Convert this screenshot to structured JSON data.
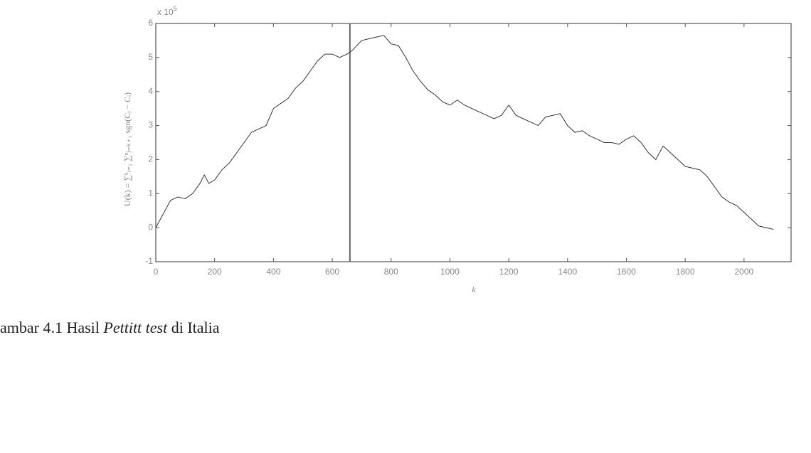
{
  "chart_data": {
    "type": "line",
    "y_multiplier": "x 10",
    "y_multiplier_exponent": "5",
    "xlabel": "k",
    "ylabel": "U(k) = ∑ᵏᵢ₌₁ ∑ⁿⱼ₌ₖ₊₁ sgn(Cⱼ − Cᵢ)",
    "x": [
      0,
      25,
      50,
      75,
      100,
      125,
      150,
      165,
      180,
      200,
      225,
      250,
      275,
      300,
      325,
      350,
      375,
      400,
      425,
      450,
      475,
      500,
      525,
      550,
      575,
      600,
      625,
      650,
      667,
      700,
      725,
      750,
      775,
      800,
      825,
      850,
      875,
      900,
      925,
      950,
      975,
      1000,
      1025,
      1050,
      1075,
      1100,
      1125,
      1150,
      1175,
      1200,
      1225,
      1250,
      1275,
      1300,
      1325,
      1350,
      1375,
      1400,
      1425,
      1450,
      1475,
      1500,
      1525,
      1550,
      1575,
      1600,
      1625,
      1650,
      1675,
      1700,
      1725,
      1750,
      1775,
      1800,
      1825,
      1850,
      1875,
      1900,
      1925,
      1950,
      1975,
      2000,
      2025,
      2050,
      2075,
      2100
    ],
    "values": [
      0,
      0.4,
      0.8,
      0.9,
      0.85,
      1.0,
      1.3,
      1.55,
      1.3,
      1.4,
      1.7,
      1.9,
      2.2,
      2.5,
      2.8,
      2.9,
      3.0,
      3.5,
      3.65,
      3.8,
      4.1,
      4.3,
      4.6,
      4.9,
      5.1,
      5.1,
      5.0,
      5.1,
      5.2,
      5.5,
      5.55,
      5.6,
      5.65,
      5.4,
      5.35,
      5.0,
      4.6,
      4.3,
      4.05,
      3.9,
      3.7,
      3.6,
      3.75,
      3.6,
      3.5,
      3.4,
      3.3,
      3.2,
      3.3,
      3.6,
      3.3,
      3.2,
      3.1,
      3.0,
      3.25,
      3.3,
      3.35,
      3.0,
      2.8,
      2.85,
      2.7,
      2.6,
      2.5,
      2.5,
      2.45,
      2.6,
      2.7,
      2.5,
      2.2,
      2.0,
      2.4,
      2.2,
      2.0,
      1.8,
      1.75,
      1.7,
      1.5,
      1.2,
      0.9,
      0.75,
      0.65,
      0.45,
      0.25,
      0.05,
      0.0,
      -0.05
    ],
    "color": "#333333",
    "change_point": 660,
    "xlim": [
      0,
      2160
    ],
    "xticks": [
      0,
      200,
      400,
      600,
      800,
      1000,
      1200,
      1400,
      1600,
      1800,
      2000
    ],
    "ylim": [
      -1,
      6
    ],
    "yticks": [
      -1,
      0,
      1,
      2,
      3,
      4,
      5,
      6
    ]
  },
  "caption": {
    "prefix": "ambar 4.1 Hasil ",
    "italic": "Pettitt test",
    "suffix": " di Italia"
  }
}
